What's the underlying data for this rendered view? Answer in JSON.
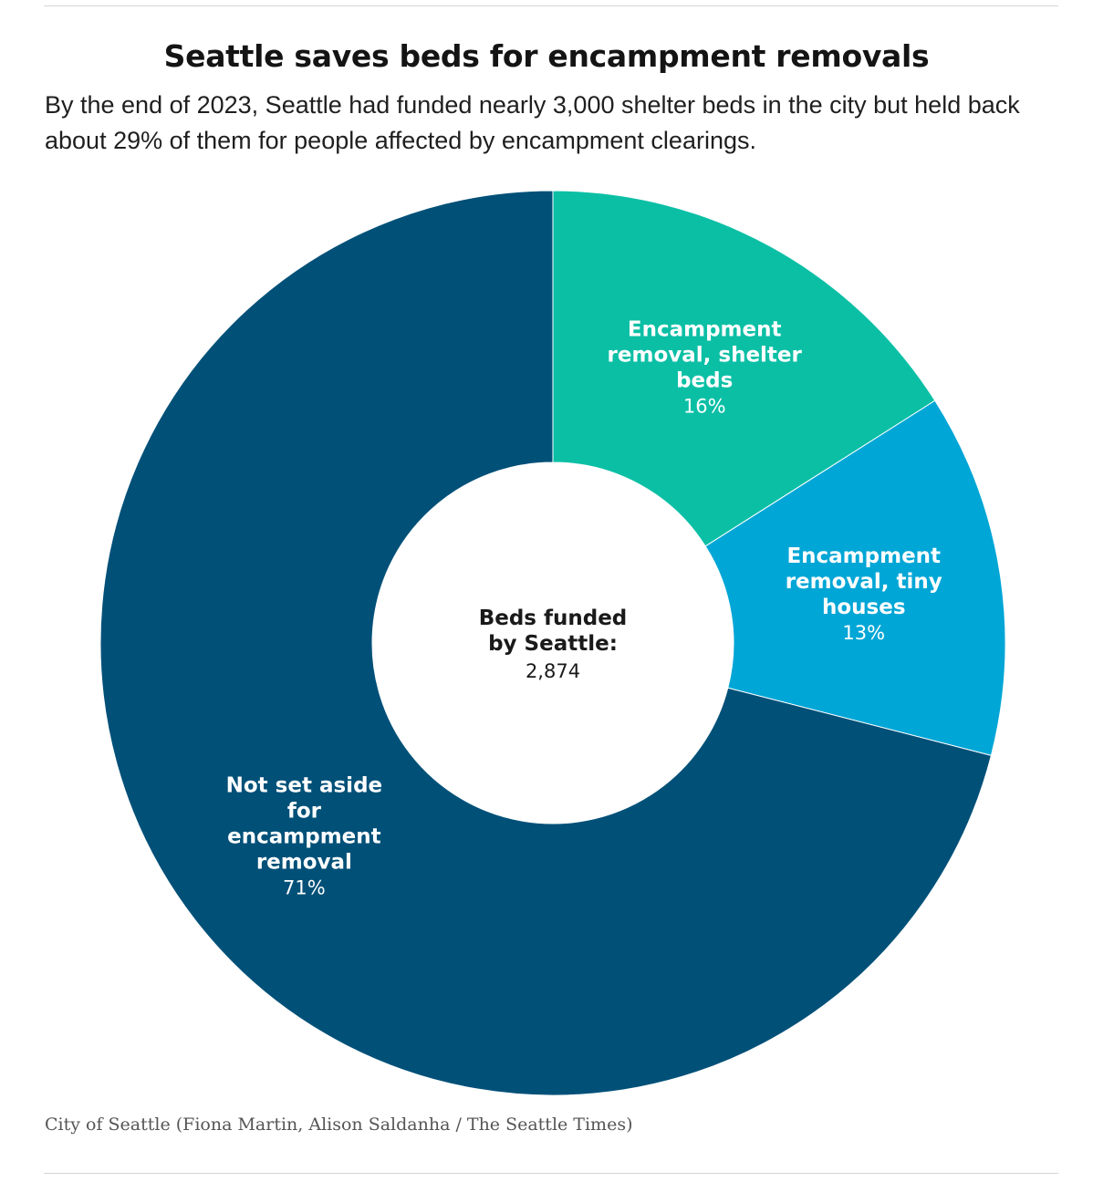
{
  "title": "Seattle saves beds for encampment removals",
  "subtitle": "By the end of 2023, Seattle had funded nearly 3,000 shelter beds in the city but held back about 29% of them for people affected by encampment clearings.",
  "source": "City of Seattle (Fiona Martin, Alison Saldanha / The Seattle Times)",
  "chart_data": {
    "type": "pie",
    "variant": "donut",
    "center_label": {
      "lines": [
        "Beds funded",
        "by Seattle:"
      ],
      "value": "2,874"
    },
    "slices": [
      {
        "label_lines": [
          "Encampment",
          "removal, shelter",
          "beds"
        ],
        "value": 16,
        "value_label": "16%",
        "color": "#0bbfa5"
      },
      {
        "label_lines": [
          "Encampment",
          "removal, tiny",
          "houses"
        ],
        "value": 13,
        "value_label": "13%",
        "color": "#00a6d6"
      },
      {
        "label_lines": [
          "Not set aside",
          "for",
          "encampment",
          "removal"
        ],
        "value": 71,
        "value_label": "71%",
        "color": "#005078"
      }
    ],
    "label_text_color": "#ffffff",
    "center_text_color": "#1a1a1a"
  }
}
